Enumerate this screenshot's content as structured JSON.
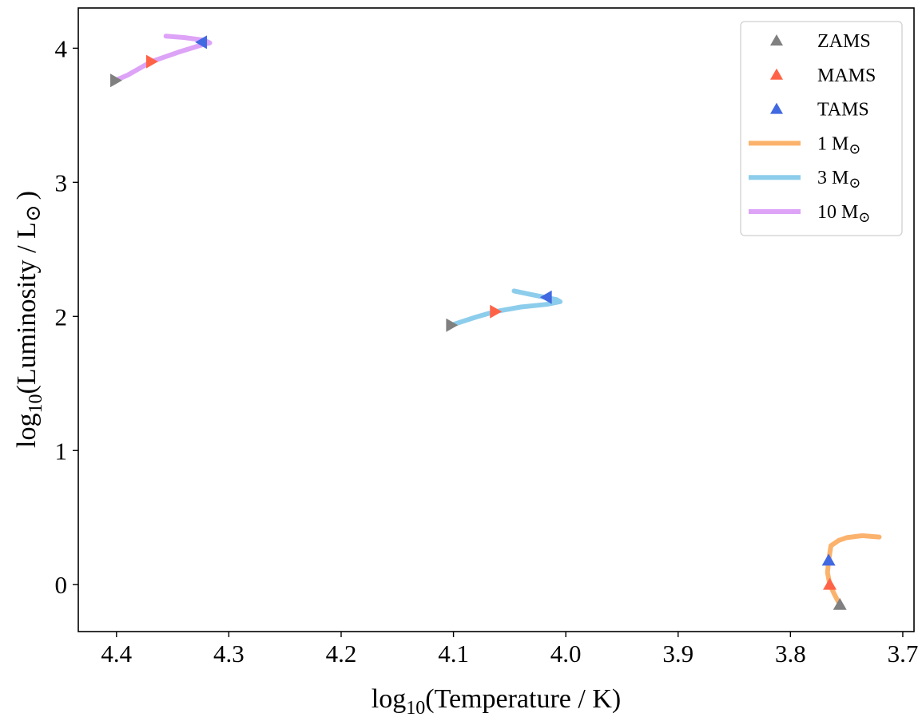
{
  "chart_data": {
    "type": "line",
    "title": "",
    "xlabel": {
      "prefix": "log",
      "sub": "10",
      "rest": "(Temperature / K)"
    },
    "ylabel": {
      "prefix": "log",
      "sub": "10",
      "rest": "(Luminosity / L",
      "sym": "⊙",
      "end": ")"
    },
    "xlim": [
      4.434,
      3.69
    ],
    "ylim": [
      -0.35,
      4.3
    ],
    "xticks": [
      4.4,
      4.3,
      4.2,
      4.1,
      4.0,
      3.9,
      3.8,
      3.7
    ],
    "xtick_labels": [
      "4.4",
      "4.3",
      "4.2",
      "4.1",
      "4.0",
      "3.9",
      "3.8",
      "3.7"
    ],
    "yticks": [
      0,
      1,
      2,
      3,
      4
    ],
    "ytick_labels": [
      "0",
      "1",
      "2",
      "3",
      "4"
    ],
    "grid": false,
    "legend_placement": "top-right",
    "series": [
      {
        "name": "1 M⊙",
        "color": "#fbb26c",
        "x": [
          3.756,
          3.761,
          3.765,
          3.767,
          3.766,
          3.764,
          3.757,
          3.75,
          3.736,
          3.721
        ],
        "y": [
          -0.15,
          -0.07,
          0.0,
          0.09,
          0.18,
          0.29,
          0.33,
          0.35,
          0.365,
          0.355
        ],
        "markers": {
          "ZAMS": [
            3.756,
            -0.15,
            "up"
          ],
          "MAMS": [
            3.765,
            0.0,
            "up"
          ],
          "TAMS": [
            3.766,
            0.18,
            "up"
          ]
        }
      },
      {
        "name": "3 M⊙",
        "color": "#8dcdec",
        "x": [
          4.102,
          4.08,
          4.063,
          4.04,
          4.017,
          4.005,
          4.008,
          4.02,
          4.032,
          4.046
        ],
        "y": [
          1.935,
          1.995,
          2.036,
          2.07,
          2.09,
          2.11,
          2.125,
          2.145,
          2.165,
          2.19
        ],
        "markers": {
          "ZAMS": [
            4.102,
            1.935,
            "right"
          ],
          "MAMS": [
            4.063,
            2.036,
            "right"
          ],
          "TAMS": [
            4.017,
            2.143,
            "left"
          ]
        }
      },
      {
        "name": "10 M⊙",
        "color": "#dda3f7",
        "x": [
          4.401,
          4.39,
          4.369,
          4.345,
          4.324,
          4.317,
          4.322,
          4.34,
          4.356
        ],
        "y": [
          3.76,
          3.8,
          3.9,
          3.97,
          4.025,
          4.04,
          4.06,
          4.08,
          4.09
        ],
        "markers": {
          "ZAMS": [
            4.401,
            3.76,
            "right"
          ],
          "MAMS": [
            4.369,
            3.9,
            "right"
          ],
          "TAMS": [
            4.324,
            4.045,
            "left"
          ]
        }
      }
    ],
    "marker_legend": [
      {
        "name": "ZAMS",
        "color": "#808080"
      },
      {
        "name": "MAMS",
        "color": "#ff6347"
      },
      {
        "name": "TAMS",
        "color": "#4169e1"
      }
    ]
  }
}
